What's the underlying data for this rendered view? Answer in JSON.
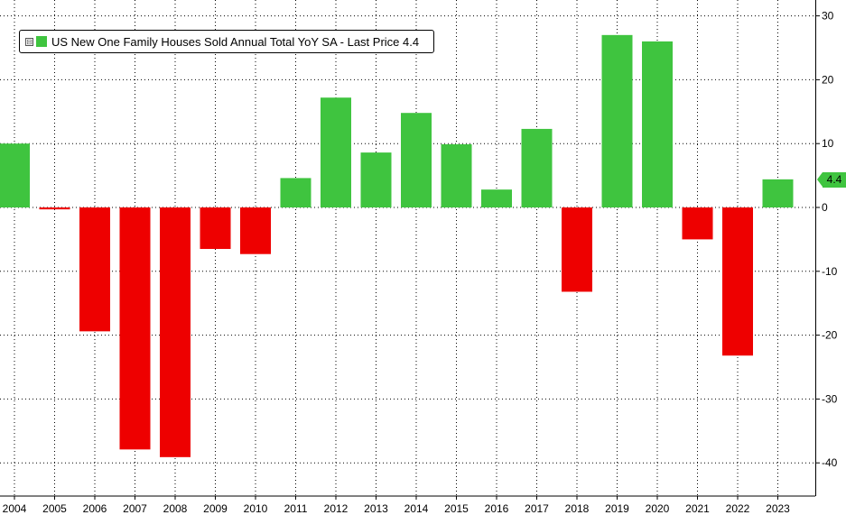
{
  "chart_data": {
    "type": "bar",
    "categories": [
      "2004",
      "2005",
      "2006",
      "2007",
      "2008",
      "2009",
      "2010",
      "2011",
      "2012",
      "2013",
      "2014",
      "2015",
      "2016",
      "2017",
      "2018",
      "2019",
      "2020",
      "2021",
      "2022",
      "2023"
    ],
    "series": [
      {
        "name": "US New One Family Houses Sold Annual Total YoY SA",
        "values": [
          10.0,
          -0.3,
          -19.4,
          -37.9,
          -39.1,
          -6.5,
          -7.3,
          4.6,
          17.2,
          8.6,
          14.8,
          9.9,
          2.8,
          12.3,
          -13.2,
          27.0,
          26.0,
          -5.0,
          -23.2,
          4.4
        ]
      }
    ],
    "positive_color": "#3fc43f",
    "negative_color": "#ee0000",
    "ylim": [
      -45.5,
      32
    ],
    "yticks": [
      30,
      20,
      10,
      0,
      -10,
      -20,
      -30,
      -40
    ],
    "ytick_labels": [
      "30",
      "20",
      "10",
      "0",
      "-10",
      "-20",
      "-30",
      "-40"
    ],
    "y_axis_side": "right",
    "grid": "dotted",
    "legend_position": "top-left",
    "xlabel": "",
    "ylabel": ""
  },
  "legend": {
    "toggle": "⊟",
    "label": "US New One Family Houses Sold Annual Total YoY SA - Last Price 4.4"
  },
  "last_price": "4.4"
}
